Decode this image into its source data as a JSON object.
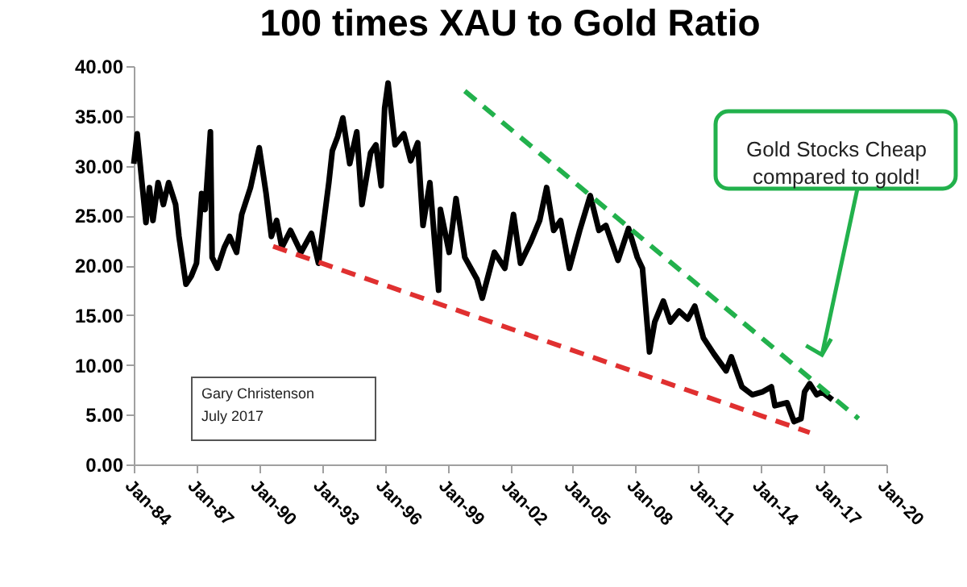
{
  "chart_data": {
    "type": "line",
    "title": "100 times XAU to Gold Ratio",
    "xlim": [
      "1984-01",
      "2020-01"
    ],
    "xticks": [
      {
        "value": "1984-01",
        "label": "Jan-84"
      },
      {
        "value": "1987-01",
        "label": "Jan-87"
      },
      {
        "value": "1990-01",
        "label": "Jan-90"
      },
      {
        "value": "1993-01",
        "label": "Jan-93"
      },
      {
        "value": "1996-01",
        "label": "Jan-96"
      },
      {
        "value": "1999-01",
        "label": "Jan-99"
      },
      {
        "value": "2002-01",
        "label": "Jan-02"
      },
      {
        "value": "2005-01",
        "label": "Jan-05"
      },
      {
        "value": "2008-01",
        "label": "Jan-08"
      },
      {
        "value": "2011-01",
        "label": "Jan-11"
      },
      {
        "value": "2014-01",
        "label": "Jan-14"
      },
      {
        "value": "2017-01",
        "label": "Jan-17"
      },
      {
        "value": "2020-01",
        "label": "Jan-20"
      }
    ],
    "ylim": [
      0,
      40
    ],
    "yticks": [
      {
        "value": 0,
        "label": "0.00"
      },
      {
        "value": 5,
        "label": "5.00"
      },
      {
        "value": 10,
        "label": "10.00"
      },
      {
        "value": 15,
        "label": "15.00"
      },
      {
        "value": 20,
        "label": "20.00"
      },
      {
        "value": 25,
        "label": "25.00"
      },
      {
        "value": 30,
        "label": "30.00"
      },
      {
        "value": 35,
        "label": "35.00"
      },
      {
        "value": 40,
        "label": "40.00"
      }
    ],
    "grid": false,
    "marker": "none",
    "series": [
      {
        "color": "#000000",
        "line_style": "solid",
        "x": [
          "1984-01",
          "1984-03",
          "1984-06",
          "1984-08",
          "1984-10",
          "1984-12",
          "1985-03",
          "1985-06",
          "1985-09",
          "1986-01",
          "1986-03",
          "1986-07",
          "1986-10",
          "1987-01",
          "1987-04",
          "1987-06",
          "1987-09",
          "1987-10",
          "1988-01",
          "1988-05",
          "1988-08",
          "1988-12",
          "1989-03",
          "1989-08",
          "1990-01",
          "1990-05",
          "1990-08",
          "1990-11",
          "1991-02",
          "1991-07",
          "1992-01",
          "1992-07",
          "1992-11",
          "1993-05",
          "1993-07",
          "1993-10",
          "1994-01",
          "1994-05",
          "1994-09",
          "1994-12",
          "1995-05",
          "1995-08",
          "1995-11",
          "1996-01",
          "1996-03",
          "1996-07",
          "1996-12",
          "1997-04",
          "1997-08",
          "1997-11",
          "1998-03",
          "1998-08",
          "1998-09",
          "1999-02",
          "1999-06",
          "1999-11",
          "2000-06",
          "2000-09",
          "2001-04",
          "2001-10",
          "2002-03",
          "2002-07",
          "2003-01",
          "2003-06",
          "2003-10",
          "2004-02",
          "2004-06",
          "2004-11",
          "2005-05",
          "2005-11",
          "2006-04",
          "2006-08",
          "2007-03",
          "2007-09",
          "2008-02",
          "2008-05",
          "2008-09",
          "2008-12",
          "2009-05",
          "2009-09",
          "2010-02",
          "2010-07",
          "2010-11",
          "2011-04",
          "2011-10",
          "2012-05",
          "2012-08",
          "2013-02",
          "2013-08",
          "2014-02",
          "2014-07",
          "2014-09",
          "2015-04",
          "2015-08",
          "2015-12",
          "2016-02",
          "2016-05",
          "2016-09",
          "2016-12",
          "2017-06"
        ],
        "values": [
          30.2,
          33.2,
          27.8,
          24.3,
          27.8,
          24.5,
          28.3,
          26.1,
          28.3,
          26.1,
          22.9,
          18.1,
          18.9,
          20.2,
          27.2,
          25.6,
          33.4,
          20.8,
          19.7,
          21.8,
          22.9,
          21.3,
          25.1,
          27.8,
          31.8,
          27.2,
          22.9,
          24.5,
          21.8,
          23.5,
          21.3,
          23.2,
          20.2,
          28.3,
          31.5,
          32.9,
          34.8,
          30.2,
          33.4,
          26.1,
          31.3,
          32.1,
          28.0,
          35.8,
          38.3,
          32.1,
          33.2,
          30.5,
          32.3,
          24.0,
          28.3,
          17.5,
          25.6,
          21.3,
          26.7,
          20.8,
          18.6,
          16.7,
          21.3,
          19.7,
          25.1,
          20.2,
          22.4,
          24.5,
          27.8,
          23.5,
          24.5,
          19.7,
          23.5,
          27.0,
          23.5,
          24.0,
          20.5,
          23.7,
          20.8,
          19.7,
          11.3,
          14.3,
          16.4,
          14.3,
          15.4,
          14.6,
          15.9,
          12.7,
          11.1,
          9.4,
          10.8,
          7.8,
          7.0,
          7.3,
          7.8,
          5.9,
          6.2,
          4.3,
          4.6,
          7.3,
          8.1,
          7.0,
          7.3,
          6.5
        ]
      },
      {
        "color": "#22b14c",
        "line_style": "dashed",
        "x": [
          "1999-11",
          "2018-09"
        ],
        "values": [
          37.5,
          4.6
        ]
      },
      {
        "color": "#e03030",
        "line_style": "dashed",
        "x": [
          "1990-09",
          "2016-05"
        ],
        "values": [
          21.9,
          3.2
        ]
      }
    ],
    "annotations": [
      "Gold Stocks Cheap\ncompared to gold!",
      "Gary Christenson\nJuly 2017"
    ]
  }
}
